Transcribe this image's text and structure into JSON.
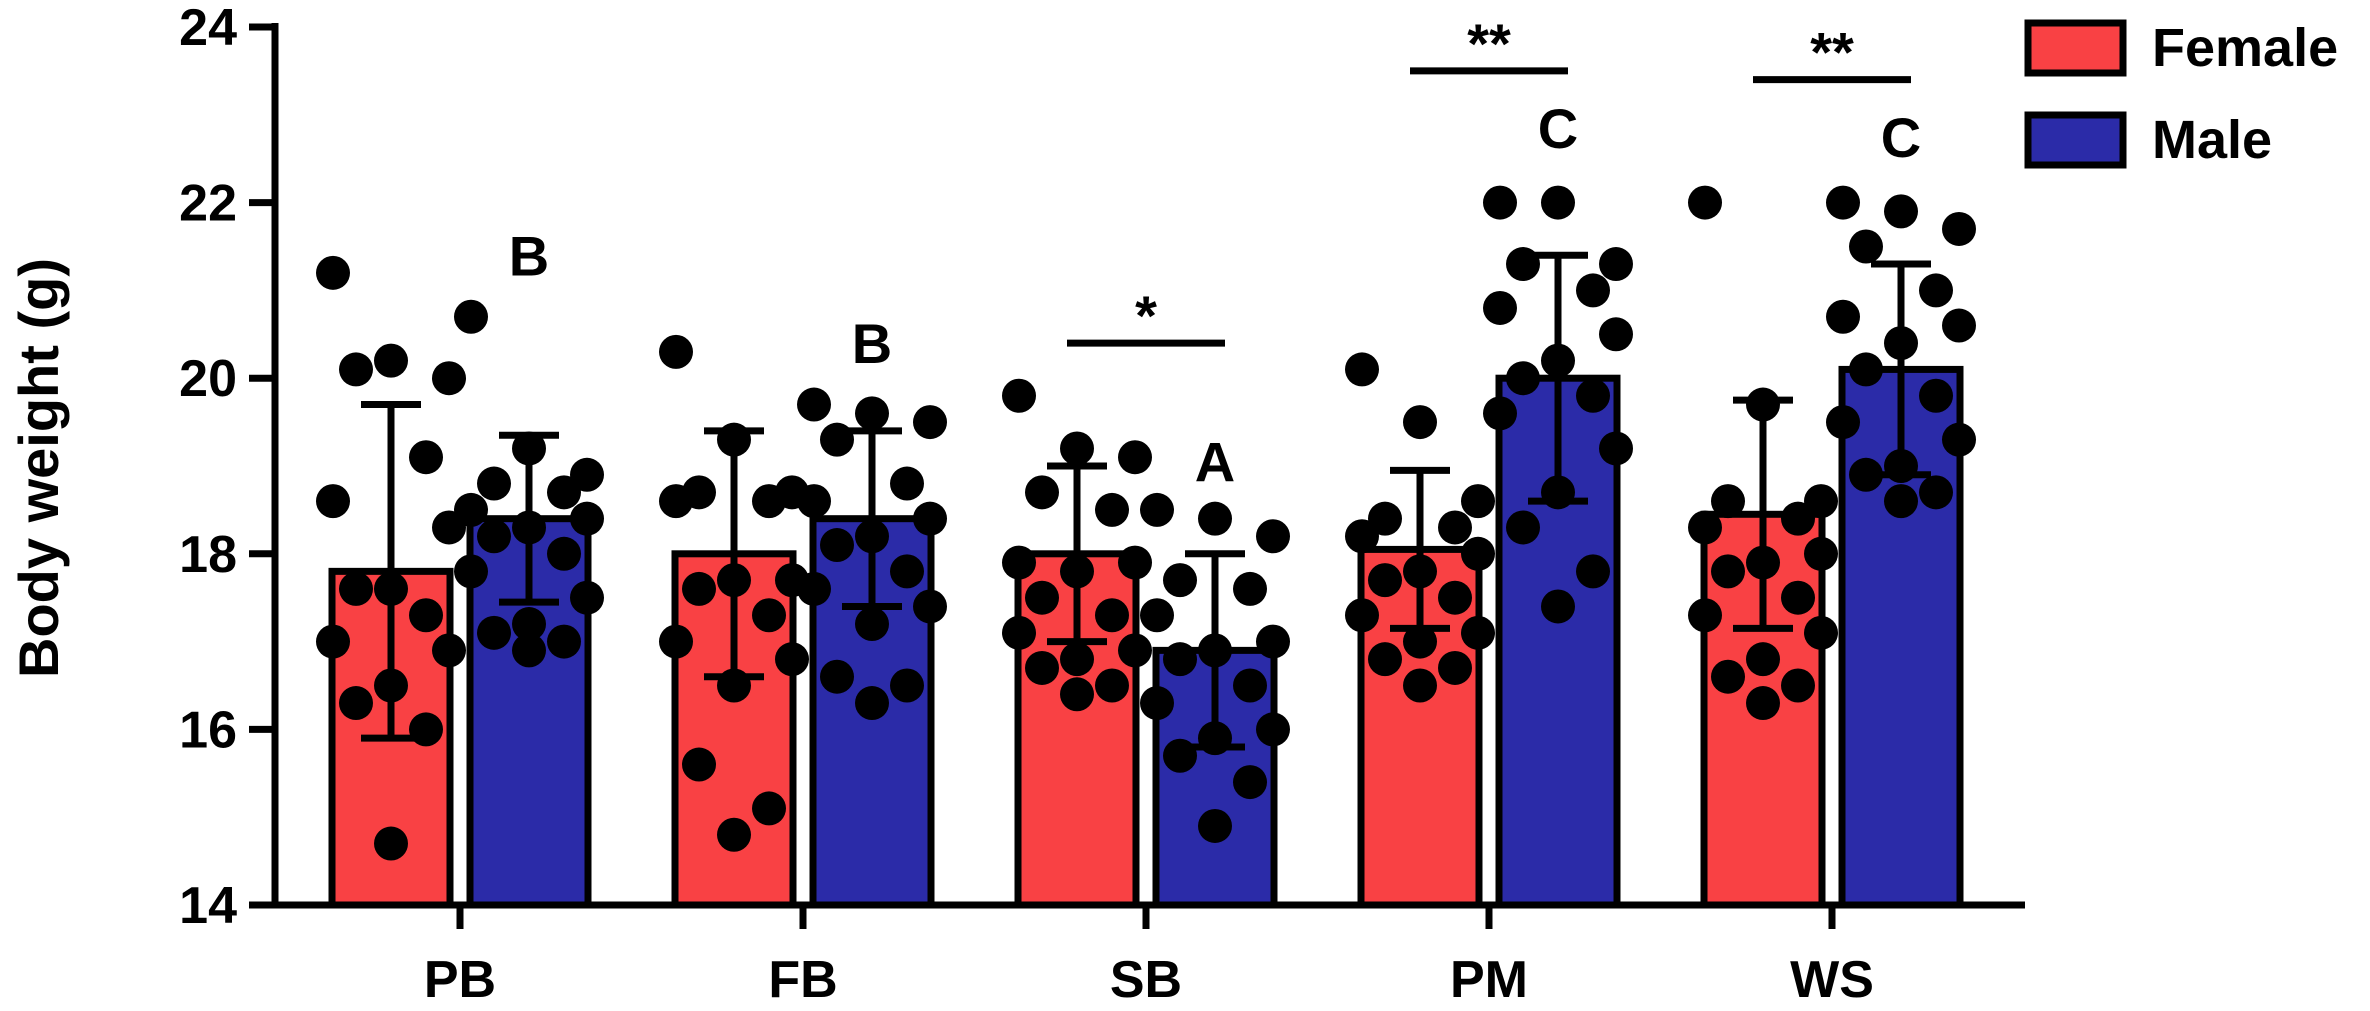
{
  "chart_data": {
    "type": "bar",
    "title": "",
    "xlabel": "",
    "ylabel": "Body weight (g)",
    "ylim": [
      14,
      24
    ],
    "yticks": [
      14,
      16,
      18,
      20,
      22,
      24
    ],
    "categories": [
      "PB",
      "FB",
      "SB",
      "PM",
      "WS"
    ],
    "grid": false,
    "legend_position": "top-right",
    "colors": {
      "Female": "#f94144",
      "Male": "#2b2ba8",
      "outline": "#000000"
    },
    "series": [
      {
        "name": "Female",
        "values": [
          17.8,
          18.0,
          18.0,
          18.05,
          18.45
        ],
        "sd": [
          1.9,
          1.4,
          1.0,
          0.9,
          1.3
        ],
        "points": [
          [
            21.2,
            20.2,
            20.0,
            20.1,
            19.1,
            18.6,
            18.3,
            17.6,
            17.6,
            17.3,
            17.0,
            16.9,
            16.5,
            16.3,
            16.0,
            14.7
          ],
          [
            20.3,
            19.3,
            18.7,
            18.7,
            18.6,
            18.6,
            17.7,
            17.7,
            17.6,
            17.3,
            17.0,
            16.8,
            16.5,
            15.6,
            15.1,
            14.8
          ],
          [
            19.8,
            19.2,
            19.1,
            18.7,
            18.5,
            17.9,
            17.9,
            17.8,
            17.5,
            17.3,
            17.1,
            16.9,
            16.8,
            16.7,
            16.5,
            16.4
          ],
          [
            20.1,
            19.5,
            18.6,
            18.4,
            18.3,
            18.2,
            18.0,
            17.8,
            17.7,
            17.5,
            17.3,
            17.1,
            17.0,
            16.8,
            16.7,
            16.5
          ],
          [
            22.0,
            19.7,
            18.6,
            18.6,
            18.4,
            18.3,
            18.0,
            17.9,
            17.8,
            17.5,
            17.3,
            17.1,
            16.8,
            16.6,
            16.5,
            16.3
          ]
        ]
      },
      {
        "name": "Male",
        "values": [
          18.4,
          18.4,
          16.9,
          20.0,
          20.1
        ],
        "sd": [
          0.95,
          1.0,
          1.1,
          1.4,
          1.2
        ],
        "points": [
          [
            20.7,
            19.2,
            18.9,
            18.8,
            18.7,
            18.5,
            18.4,
            18.3,
            18.2,
            18.0,
            17.8,
            17.5,
            17.2,
            17.1,
            17.0,
            16.9
          ],
          [
            19.7,
            19.6,
            19.5,
            19.3,
            18.8,
            18.6,
            18.4,
            18.2,
            18.1,
            17.8,
            17.6,
            17.4,
            17.2,
            16.6,
            16.5,
            16.3
          ],
          [
            18.5,
            18.4,
            18.2,
            17.7,
            17.6,
            17.3,
            17.0,
            16.9,
            16.8,
            16.5,
            16.3,
            16.0,
            15.9,
            15.7,
            15.4,
            14.9
          ],
          [
            22.0,
            22.0,
            21.3,
            21.3,
            21.0,
            20.8,
            20.5,
            20.2,
            20.0,
            19.8,
            19.6,
            19.2,
            18.7,
            18.3,
            17.8,
            17.4
          ],
          [
            22.0,
            21.9,
            21.7,
            21.5,
            21.0,
            20.7,
            20.6,
            20.4,
            20.1,
            19.8,
            19.5,
            19.3,
            19.0,
            18.9,
            18.7,
            18.6
          ]
        ]
      }
    ],
    "group_letters": [
      {
        "category": "PB",
        "series": "Male",
        "label": "B",
        "y": 21.4
      },
      {
        "category": "FB",
        "series": "Male",
        "label": "B",
        "y": 20.4
      },
      {
        "category": "SB",
        "series": "Male",
        "label": "A",
        "y": 19.05
      },
      {
        "category": "PM",
        "series": "Male",
        "label": "C",
        "y": 22.85
      },
      {
        "category": "WS",
        "series": "Male",
        "label": "C",
        "y": 22.75
      }
    ],
    "significance": [
      {
        "category": "SB",
        "label": "*",
        "y": 20.4
      },
      {
        "category": "PM",
        "label": "**",
        "y": 23.5
      },
      {
        "category": "WS",
        "label": "**",
        "y": 23.4
      }
    ]
  }
}
